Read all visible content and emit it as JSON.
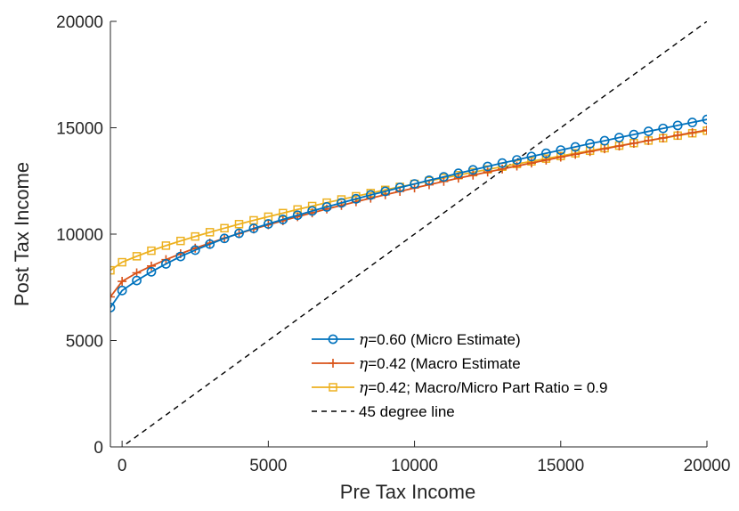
{
  "chart_data": {
    "type": "line",
    "xlabel": "Pre Tax Income",
    "ylabel": "Post Tax Income",
    "xlim": [
      -400,
      20000
    ],
    "ylim": [
      0,
      20000
    ],
    "x_ticks": [
      0,
      5000,
      10000,
      15000,
      20000
    ],
    "y_ticks": [
      0,
      5000,
      10000,
      15000,
      20000
    ],
    "grid": false,
    "legend_position": "bottom-right",
    "series": [
      {
        "name": "η=0.60 (Micro Estimate)",
        "eta": "η",
        "label_rest": "=0.60 (Micro Estimate)",
        "color": "#0072BD",
        "marker": "circle",
        "x": [
          -400,
          0,
          500,
          1000,
          1500,
          2000,
          2500,
          3000,
          3500,
          4000,
          4500,
          5000,
          5500,
          6000,
          6500,
          7000,
          7500,
          8000,
          8500,
          9000,
          9500,
          10000,
          10500,
          11000,
          11500,
          12000,
          12500,
          13000,
          13500,
          14000,
          14500,
          15000,
          15500,
          16000,
          16500,
          17000,
          17500,
          18000,
          18500,
          19000,
          19500,
          20000
        ],
        "y": [
          6550,
          7350,
          7820,
          8230,
          8600,
          8950,
          9250,
          9530,
          9800,
          10040,
          10270,
          10480,
          10690,
          10890,
          11090,
          11280,
          11470,
          11660,
          11840,
          12010,
          12190,
          12360,
          12530,
          12690,
          12860,
          13020,
          13180,
          13340,
          13490,
          13650,
          13800,
          13950,
          14100,
          14250,
          14390,
          14540,
          14680,
          14830,
          14970,
          15110,
          15250,
          15390
        ]
      },
      {
        "name": "η=0.42 (Macro Estimate",
        "eta": "η",
        "label_rest": "=0.42 (Macro Estimate",
        "color": "#D95319",
        "marker": "plus",
        "x": [
          -400,
          0,
          500,
          1000,
          1500,
          2000,
          2500,
          3000,
          3500,
          4000,
          4500,
          5000,
          5500,
          6000,
          6500,
          7000,
          7500,
          8000,
          8500,
          9000,
          9500,
          10000,
          10500,
          11000,
          11500,
          12000,
          12500,
          13000,
          13500,
          14000,
          14500,
          15000,
          15500,
          16000,
          16500,
          17000,
          17500,
          18000,
          18500,
          19000,
          19500,
          20000
        ],
        "y": [
          7050,
          7780,
          8180,
          8500,
          8800,
          9080,
          9340,
          9580,
          9810,
          10030,
          10240,
          10440,
          10630,
          10820,
          11000,
          11180,
          11350,
          11520,
          11690,
          11850,
          12010,
          12170,
          12320,
          12480,
          12630,
          12770,
          12920,
          13060,
          13200,
          13340,
          13480,
          13620,
          13750,
          13880,
          14010,
          14140,
          14270,
          14400,
          14520,
          14650,
          14770,
          14890
        ]
      },
      {
        "name": "η=0.42; Macro/Micro Part Ratio = 0.9",
        "eta": "η",
        "label_rest": "=0.42; Macro/Micro Part Ratio = 0.9",
        "color": "#EDB120",
        "marker": "square",
        "x": [
          -400,
          0,
          500,
          1000,
          1500,
          2000,
          2500,
          3000,
          3500,
          4000,
          4500,
          5000,
          5500,
          6000,
          6500,
          7000,
          7500,
          8000,
          8500,
          9000,
          9500,
          10000,
          10500,
          11000,
          11500,
          12000,
          12500,
          13000,
          13500,
          14000,
          14500,
          15000,
          15500,
          16000,
          16500,
          17000,
          17500,
          18000,
          18500,
          19000,
          19500,
          20000
        ],
        "y": [
          8300,
          8680,
          8960,
          9220,
          9460,
          9680,
          9890,
          10090,
          10280,
          10470,
          10650,
          10820,
          10990,
          11160,
          11320,
          11480,
          11630,
          11780,
          11930,
          12080,
          12220,
          12360,
          12500,
          12640,
          12770,
          12910,
          13040,
          13170,
          13300,
          13420,
          13550,
          13670,
          13800,
          13920,
          14040,
          14160,
          14280,
          14400,
          14510,
          14630,
          14740,
          14860
        ]
      },
      {
        "name": "45 degree line",
        "eta": "",
        "label_rest": "45 degree line",
        "color": "#000000",
        "marker": "none",
        "dashed": true,
        "x": [
          -400,
          20000
        ],
        "y": [
          -400,
          20000
        ]
      }
    ]
  }
}
